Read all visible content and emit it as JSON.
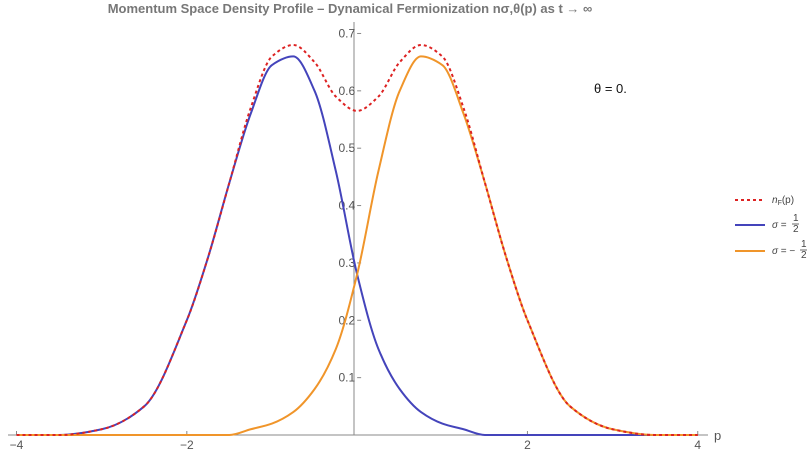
{
  "chart_data": {
    "type": "line",
    "title": "Momentum Space Density Profile – Dynamical Fermionization nσ,θ(p) as t → ∞",
    "xlabel": "p",
    "ylabel": "",
    "xlim": [
      -4.1,
      4.05
    ],
    "ylim": [
      0,
      0.72
    ],
    "x_ticks": [
      -4,
      -2,
      2,
      4
    ],
    "y_ticks": [
      0.1,
      0.2,
      0.3,
      0.4,
      0.5,
      0.6,
      0.7
    ],
    "x_tick_labels": [
      "−4",
      "−2",
      "2",
      "4"
    ],
    "y_tick_labels": [
      "0.1",
      "0.2",
      "0.3",
      "0.4",
      "0.5",
      "0.6",
      "0.7"
    ],
    "grid": false,
    "annotation": "θ = 0.",
    "legend": {
      "placement": "right",
      "entries": [
        "nF(p)",
        "σ = 1/2",
        "σ = −1/2"
      ]
    },
    "series": [
      {
        "name": "nF(p)",
        "style": "dashed",
        "color": "#dd2222",
        "x": [
          -4,
          -3.5,
          -3,
          -2.5,
          -2,
          -1.75,
          -1.5,
          -1.25,
          -1,
          -0.75,
          -0.5,
          -0.25,
          0,
          0.25,
          0.5,
          0.75,
          1,
          1.25,
          1.5,
          1.75,
          2,
          2.5,
          3,
          3.5,
          4
        ],
        "values": [
          0.0,
          0.0,
          0.01,
          0.05,
          0.2,
          0.31,
          0.44,
          0.57,
          0.66,
          0.68,
          0.65,
          0.59,
          0.565,
          0.59,
          0.65,
          0.68,
          0.66,
          0.57,
          0.44,
          0.31,
          0.2,
          0.05,
          0.01,
          0.0,
          0.0
        ]
      },
      {
        "name": "σ = 1/2",
        "style": "solid",
        "color": "#4444bb",
        "x": [
          -4,
          -3.5,
          -3,
          -2.5,
          -2,
          -1.75,
          -1.5,
          -1.25,
          -1,
          -0.75,
          -0.5,
          -0.25,
          0,
          0.25,
          0.5,
          0.75,
          1,
          1.25,
          1.5,
          1.75,
          2,
          2.5,
          3,
          3.5,
          4
        ],
        "values": [
          0.0,
          0.0,
          0.01,
          0.05,
          0.2,
          0.31,
          0.44,
          0.56,
          0.645,
          0.66,
          0.6,
          0.46,
          0.28,
          0.15,
          0.08,
          0.04,
          0.02,
          0.01,
          0.0,
          0.0,
          0.0,
          0.0,
          0.0,
          0.0,
          0.0
        ]
      },
      {
        "name": "σ = −1/2",
        "style": "solid",
        "color": "#f0952a",
        "x": [
          -4,
          -3.5,
          -3,
          -2.5,
          -2,
          -1.75,
          -1.5,
          -1.25,
          -1,
          -0.75,
          -0.5,
          -0.25,
          0,
          0.25,
          0.5,
          0.75,
          1,
          1.25,
          1.5,
          1.75,
          2,
          2.5,
          3,
          3.5,
          4
        ],
        "values": [
          0.0,
          0.0,
          0.0,
          0.0,
          0.0,
          0.0,
          0.0,
          0.01,
          0.02,
          0.04,
          0.08,
          0.15,
          0.28,
          0.46,
          0.6,
          0.66,
          0.645,
          0.56,
          0.44,
          0.31,
          0.2,
          0.05,
          0.01,
          0.0,
          0.0
        ]
      }
    ]
  }
}
